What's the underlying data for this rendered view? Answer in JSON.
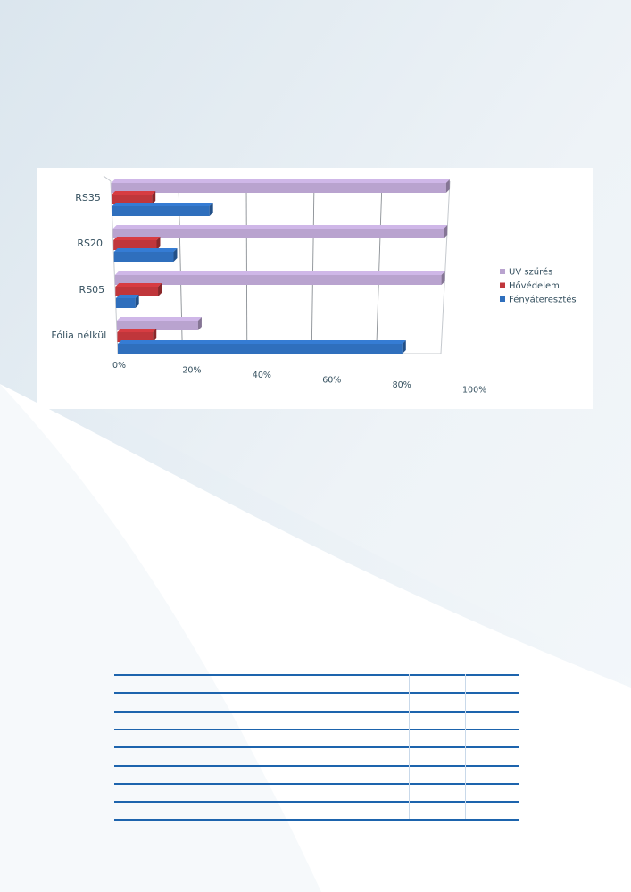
{
  "chart_data": {
    "type": "bar",
    "orientation": "horizontal",
    "style": "3d",
    "categories": [
      "RS35",
      "RS20",
      "RS05",
      "Fólia nélkül"
    ],
    "series": [
      {
        "name": "UV szűrés",
        "color": "#b9a3cf",
        "values": [
          99,
          99,
          99,
          25
        ]
      },
      {
        "name": "Hővédelem",
        "color": "#c0363b",
        "values": [
          12,
          13,
          13,
          11
        ]
      },
      {
        "name": "Fényáteresztés",
        "color": "#2f6fbd",
        "values": [
          29,
          18,
          6,
          88
        ]
      }
    ],
    "x_ticks": [
      "0%",
      "20%",
      "40%",
      "60%",
      "80%",
      "100%"
    ],
    "xlim": [
      0,
      100
    ],
    "grid": true,
    "legend": "right"
  },
  "table": {
    "row_count": 9
  }
}
